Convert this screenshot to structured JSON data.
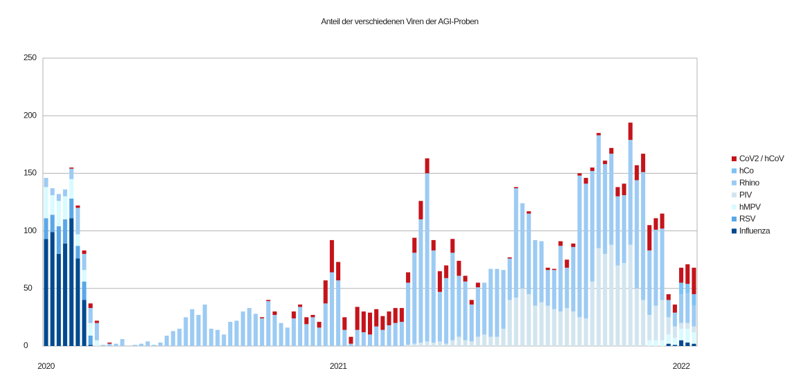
{
  "chart_data": {
    "type": "stacked-bar",
    "title": "Anteil der verschiedenen Viren der AGI-Proben",
    "categories": [
      "2020",
      null,
      null,
      null,
      null,
      null,
      null,
      null,
      null,
      null,
      null,
      null,
      null,
      null,
      null,
      null,
      null,
      null,
      null,
      null,
      null,
      null,
      null,
      null,
      null,
      null,
      null,
      null,
      null,
      null,
      null,
      null,
      null,
      null,
      null,
      null,
      null,
      null,
      null,
      null,
      null,
      null,
      null,
      null,
      null,
      null,
      "2021",
      null,
      null,
      null,
      null,
      null,
      null,
      null,
      null,
      null,
      null,
      null,
      null,
      null,
      null,
      null,
      null,
      null,
      null,
      null,
      null,
      null,
      null,
      null,
      null,
      null,
      null,
      null,
      null,
      null,
      null,
      null,
      null,
      null,
      null,
      null,
      null,
      null,
      null,
      null,
      null,
      null,
      null,
      null,
      null,
      null,
      null,
      null,
      null,
      null,
      null,
      null,
      null,
      null,
      "2022",
      null,
      null
    ],
    "series": [
      {
        "name": "Influenza",
        "color": "#004a8f",
        "values": [
          93,
          99,
          80,
          89,
          111,
          76,
          40,
          1,
          0,
          0,
          0,
          0,
          0,
          0,
          0,
          0,
          0,
          0,
          0,
          0,
          0,
          0,
          0,
          0,
          0,
          0,
          0,
          0,
          0,
          0,
          0,
          0,
          0,
          0,
          0,
          0,
          0,
          0,
          0,
          0,
          0,
          0,
          0,
          0,
          0,
          0,
          0,
          0,
          0,
          0,
          0,
          0,
          0,
          0,
          0,
          0,
          0,
          0,
          0,
          0,
          0,
          0,
          0,
          0,
          0,
          0,
          0,
          0,
          0,
          0,
          0,
          0,
          0,
          0,
          0,
          0,
          0,
          0,
          0,
          0,
          0,
          0,
          0,
          0,
          0,
          0,
          0,
          0,
          0,
          0,
          0,
          0,
          0,
          0,
          0,
          0,
          0,
          0,
          2,
          1,
          5,
          3,
          2
        ]
      },
      {
        "name": "RSV",
        "color": "#5aa8e8",
        "values": [
          18,
          15,
          24,
          21,
          17,
          11,
          16,
          8,
          0,
          0,
          0,
          0,
          0,
          0,
          0,
          0,
          0,
          0,
          0,
          0,
          0,
          0,
          0,
          0,
          0,
          0,
          0,
          0,
          0,
          0,
          0,
          0,
          0,
          0,
          0,
          0,
          0,
          0,
          0,
          0,
          0,
          0,
          0,
          0,
          0,
          0,
          0,
          0,
          0,
          0,
          0,
          0,
          0,
          0,
          0,
          0,
          0,
          0,
          0,
          0,
          0,
          0,
          0,
          0,
          0,
          0,
          0,
          0,
          0,
          0,
          0,
          0,
          0,
          0,
          0,
          0,
          0,
          0,
          0,
          0,
          0,
          0,
          0,
          0,
          0,
          0,
          0,
          0,
          0,
          0,
          0,
          0,
          0,
          0,
          0,
          0,
          0,
          0,
          0,
          0,
          0,
          0,
          0
        ]
      },
      {
        "name": "hMPV",
        "color": "#d8fbff",
        "values": [
          27,
          17,
          22,
          20,
          17,
          10,
          10,
          11,
          5,
          0,
          0,
          0,
          0,
          0,
          0,
          0,
          0,
          0,
          0,
          0,
          0,
          0,
          0,
          0,
          0,
          0,
          0,
          0,
          0,
          0,
          0,
          0,
          0,
          0,
          0,
          0,
          0,
          0,
          0,
          0,
          0,
          0,
          0,
          0,
          0,
          0,
          0,
          0,
          0,
          0,
          0,
          0,
          0,
          0,
          0,
          0,
          0,
          0,
          0,
          0,
          0,
          0,
          0,
          0,
          0,
          0,
          0,
          0,
          0,
          0,
          0,
          0,
          0,
          0,
          0,
          0,
          0,
          0,
          0,
          0,
          0,
          0,
          0,
          0,
          0,
          0,
          0,
          0,
          0,
          0,
          0,
          0,
          0,
          0,
          0,
          5,
          5,
          5,
          8,
          6,
          10,
          12,
          10
        ]
      },
      {
        "name": "PIV",
        "color": "#d2e5ef",
        "values": [
          0,
          0,
          0,
          0,
          0,
          0,
          0,
          0,
          0,
          0,
          0,
          0,
          0,
          0,
          0,
          0,
          0,
          0,
          0,
          0,
          0,
          0,
          0,
          0,
          0,
          0,
          0,
          0,
          0,
          0,
          0,
          0,
          0,
          0,
          0,
          0,
          0,
          0,
          0,
          0,
          0,
          0,
          0,
          0,
          0,
          0,
          0,
          0,
          0,
          0,
          0,
          0,
          0,
          0,
          0,
          0,
          0,
          1,
          2,
          3,
          4,
          3,
          4,
          2,
          5,
          8,
          5,
          4,
          8,
          10,
          8,
          8,
          15,
          40,
          42,
          50,
          45,
          35,
          38,
          35,
          32,
          30,
          33,
          30,
          25,
          24,
          56,
          85,
          80,
          88,
          70,
          72,
          88,
          50,
          40,
          22,
          30,
          35,
          15,
          10,
          5,
          5,
          5
        ]
      },
      {
        "name": "Rhino",
        "color": "#9ccbf3",
        "values": [
          8,
          6,
          6,
          6,
          9,
          23,
          14,
          13,
          15,
          1,
          2,
          2,
          6,
          0,
          1,
          2,
          4,
          1,
          3,
          9,
          13,
          15,
          25,
          32,
          27,
          36,
          15,
          14,
          10,
          21,
          22,
          30,
          33,
          28,
          24,
          39,
          27,
          20,
          16,
          24,
          34,
          19,
          25,
          16,
          37,
          64,
          57,
          14,
          2,
          14,
          12,
          10,
          17,
          14,
          18,
          20,
          21,
          54,
          79,
          107,
          146,
          80,
          43,
          57,
          76,
          53,
          51,
          32,
          43,
          45,
          59,
          59,
          51,
          36,
          95,
          74,
          70,
          57,
          53,
          31,
          34,
          57,
          35,
          56,
          123,
          117,
          96,
          98,
          78,
          79,
          60,
          59,
          91,
          94,
          111,
          56,
          66,
          62,
          15,
          12,
          25,
          26,
          18
        ]
      },
      {
        "name": "hCo",
        "color": "#7cc3f6",
        "values": [
          0,
          0,
          0,
          0,
          0,
          0,
          0,
          0,
          0,
          0,
          0,
          0,
          0,
          0,
          0,
          0,
          0,
          0,
          0,
          0,
          0,
          0,
          0,
          0,
          0,
          0,
          0,
          0,
          0,
          0,
          0,
          0,
          0,
          0,
          0,
          0,
          0,
          0,
          0,
          0,
          0,
          0,
          0,
          0,
          0,
          0,
          0,
          0,
          0,
          0,
          0,
          0,
          0,
          0,
          0,
          0,
          0,
          0,
          0,
          0,
          0,
          0,
          0,
          0,
          0,
          0,
          0,
          0,
          0,
          0,
          0,
          0,
          0,
          0,
          0,
          0,
          0,
          0,
          0,
          0,
          0,
          0,
          0,
          0,
          0,
          0,
          0,
          0,
          0,
          0,
          0,
          0,
          0,
          0,
          0,
          0,
          0,
          0,
          0,
          0,
          10,
          8,
          10
        ]
      },
      {
        "name": "CoV2 / hCoV",
        "color": "#c4141b",
        "values": [
          0,
          0,
          0,
          0,
          1,
          2,
          3,
          4,
          2,
          0,
          1,
          0,
          0,
          0,
          0,
          0,
          0,
          0,
          0,
          0,
          0,
          0,
          0,
          0,
          0,
          0,
          0,
          0,
          0,
          0,
          0,
          0,
          0,
          0,
          1,
          1,
          3,
          0,
          0,
          6,
          2,
          6,
          2,
          5,
          20,
          28,
          16,
          11,
          6,
          20,
          18,
          19,
          15,
          12,
          12,
          13,
          12,
          9,
          13,
          16,
          13,
          9,
          18,
          11,
          12,
          13,
          5,
          4,
          4,
          0,
          0,
          0,
          0,
          1,
          1,
          0,
          2,
          0,
          0,
          2,
          1,
          4,
          7,
          3,
          2,
          5,
          3,
          2,
          3,
          5,
          8,
          10,
          15,
          13,
          16,
          22,
          10,
          13,
          5,
          7,
          13,
          17,
          23
        ]
      }
    ],
    "ylim": [
      0,
      250
    ],
    "yticks": [
      0,
      50,
      100,
      150,
      200,
      250
    ],
    "grid": true,
    "legend": "right"
  }
}
